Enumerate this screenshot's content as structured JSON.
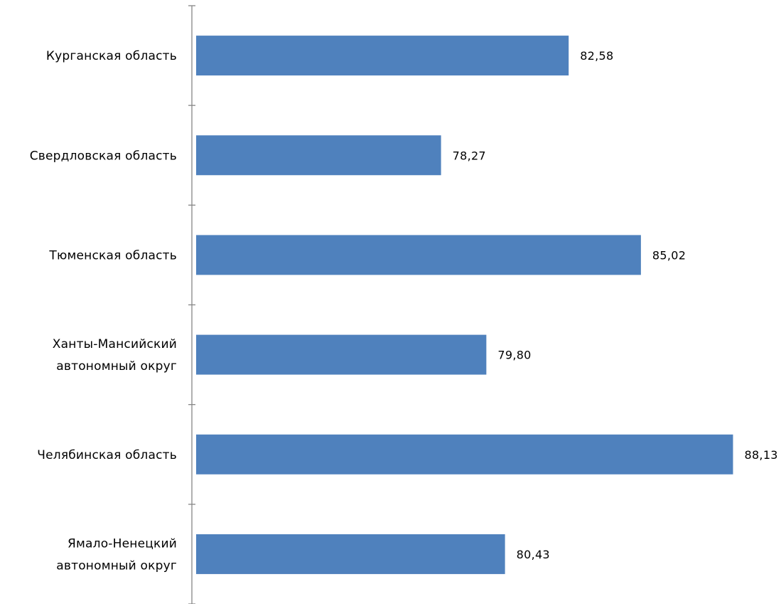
{
  "chart_data": {
    "type": "bar",
    "orientation": "horizontal",
    "categories": [
      [
        "Курганская область"
      ],
      [
        "Свердловская область"
      ],
      [
        "Тюменская область"
      ],
      [
        "Ханты-Мансийский",
        "автономный округ"
      ],
      [
        "Челябинская область"
      ],
      [
        "Ямало-Ненецкий",
        "автономный округ"
      ]
    ],
    "values": [
      82.58,
      78.27,
      85.02,
      79.8,
      88.13,
      80.43
    ],
    "value_labels": [
      "82,58",
      "78,27",
      "85,02",
      "79,80",
      "88,13",
      "80,43"
    ],
    "xlim": [
      70,
      90
    ],
    "title": "",
    "xlabel": "",
    "ylabel": "",
    "grid": false,
    "legend": "none",
    "bar_color": "#4f81bd",
    "axis_color": "#868686"
  }
}
